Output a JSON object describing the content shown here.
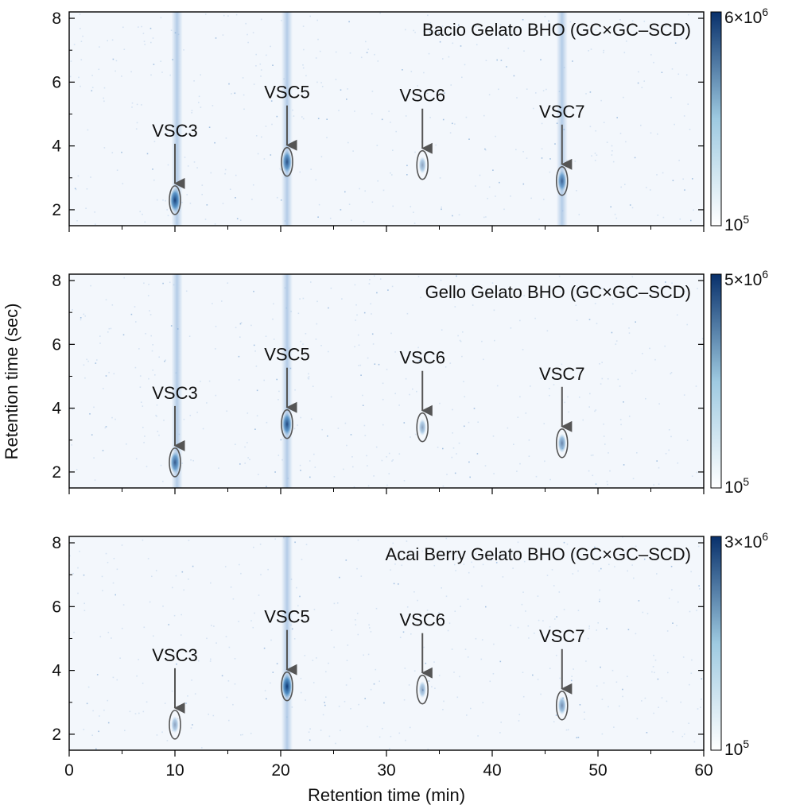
{
  "figure": {
    "xlabel": "Retention time (min)",
    "ylabel": "Retention time (sec)"
  },
  "colors": {
    "background": "#f3f7fc",
    "stripe": "#7fa8d6",
    "peak": "#0b4a8f",
    "colorbar_top": "#08306b",
    "colorbar_bottom": "#ffffff",
    "ellipse": "#555555",
    "arrow": "#555555"
  },
  "chart_data": [
    {
      "type": "heatmap",
      "title": "Bacio Gelato BHO (GC×GC–SCD)",
      "xlim": [
        0,
        60
      ],
      "ylim": [
        1.5,
        8.2
      ],
      "x_ticks": [
        0,
        10,
        20,
        30,
        40,
        50,
        60
      ],
      "y_ticks": [
        2,
        4,
        6,
        8
      ],
      "colorbar": {
        "scale": "log",
        "max_label": "6×10",
        "max_exp": "6",
        "min_label": "10",
        "min_exp": "5"
      },
      "stripes_x": [
        10.2,
        20.6,
        46.6
      ],
      "peaks": [
        {
          "label": "VSC3",
          "x": 10.0,
          "y": 2.3,
          "intensity": 0.9
        },
        {
          "label": "VSC5",
          "x": 20.6,
          "y": 3.5,
          "intensity": 0.75
        },
        {
          "label": "VSC6",
          "x": 33.4,
          "y": 3.4,
          "intensity": 0.25
        },
        {
          "label": "VSC7",
          "x": 46.6,
          "y": 2.9,
          "intensity": 0.6
        }
      ]
    },
    {
      "type": "heatmap",
      "title": "Gello Gelato BHO (GC×GC–SCD)",
      "xlim": [
        0,
        60
      ],
      "ylim": [
        1.5,
        8.2
      ],
      "x_ticks": [
        0,
        10,
        20,
        30,
        40,
        50,
        60
      ],
      "y_ticks": [
        2,
        4,
        6,
        8
      ],
      "colorbar": {
        "scale": "log",
        "max_label": "5×10",
        "max_exp": "6",
        "min_label": "10",
        "min_exp": "5"
      },
      "stripes_x": [
        10.2,
        20.6
      ],
      "peaks": [
        {
          "label": "VSC3",
          "x": 10.0,
          "y": 2.3,
          "intensity": 0.7
        },
        {
          "label": "VSC5",
          "x": 20.6,
          "y": 3.5,
          "intensity": 0.8
        },
        {
          "label": "VSC6",
          "x": 33.4,
          "y": 3.4,
          "intensity": 0.25
        },
        {
          "label": "VSC7",
          "x": 46.6,
          "y": 2.9,
          "intensity": 0.45
        }
      ]
    },
    {
      "type": "heatmap",
      "title": "Acai Berry Gelato BHO (GC×GC–SCD)",
      "xlim": [
        0,
        60
      ],
      "ylim": [
        1.5,
        8.2
      ],
      "x_ticks": [
        0,
        10,
        20,
        30,
        40,
        50,
        60
      ],
      "y_ticks": [
        2,
        4,
        6,
        8
      ],
      "colorbar": {
        "scale": "log",
        "max_label": "3×10",
        "max_exp": "6",
        "min_label": "10",
        "min_exp": "5"
      },
      "stripes_x": [
        20.6
      ],
      "peaks": [
        {
          "label": "VSC3",
          "x": 10.0,
          "y": 2.3,
          "intensity": 0.25
        },
        {
          "label": "VSC5",
          "x": 20.6,
          "y": 3.5,
          "intensity": 0.95
        },
        {
          "label": "VSC6",
          "x": 33.4,
          "y": 3.4,
          "intensity": 0.25
        },
        {
          "label": "VSC7",
          "x": 46.6,
          "y": 2.9,
          "intensity": 0.4
        }
      ]
    }
  ]
}
